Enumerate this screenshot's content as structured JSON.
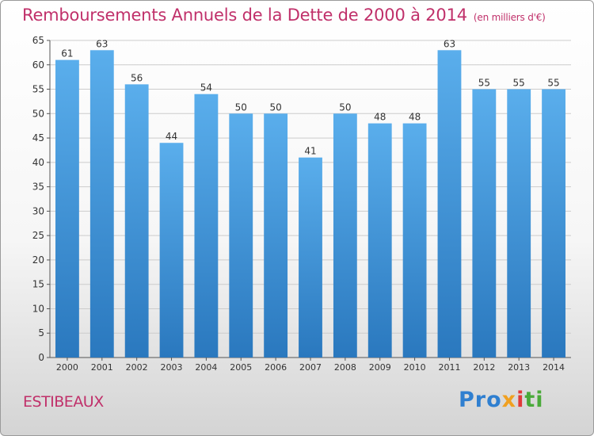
{
  "header": {
    "title": "Remboursements Annuels de la Dette de 2000 à 2014",
    "unit": "(en milliers d'€)"
  },
  "footer": {
    "location": "ESTIBEAUX",
    "logo": "Proxiti",
    "logo_parts": [
      "Pro",
      "x",
      "i",
      "ti"
    ]
  },
  "colors": {
    "title": "#c0306a",
    "bar_top": "#5aaeec",
    "bar_bottom": "#2a78be",
    "grid": "#cccccc",
    "axis": "#555555",
    "text": "#333333"
  },
  "chart_data": {
    "type": "bar",
    "title": "Remboursements Annuels de la Dette de 2000 à 2014",
    "categories": [
      "2000",
      "2001",
      "2002",
      "2003",
      "2004",
      "2005",
      "2006",
      "2007",
      "2008",
      "2009",
      "2010",
      "2011",
      "2012",
      "2013",
      "2014"
    ],
    "values": [
      61,
      63,
      56,
      44,
      54,
      50,
      50,
      41,
      50,
      48,
      48,
      63,
      55,
      55,
      55
    ],
    "ylim": [
      0,
      65
    ],
    "yticks": [
      0,
      5,
      10,
      15,
      20,
      25,
      30,
      35,
      40,
      45,
      50,
      55,
      60,
      65
    ],
    "grid": true,
    "data_labels": true,
    "xlabel": "",
    "ylabel": ""
  }
}
